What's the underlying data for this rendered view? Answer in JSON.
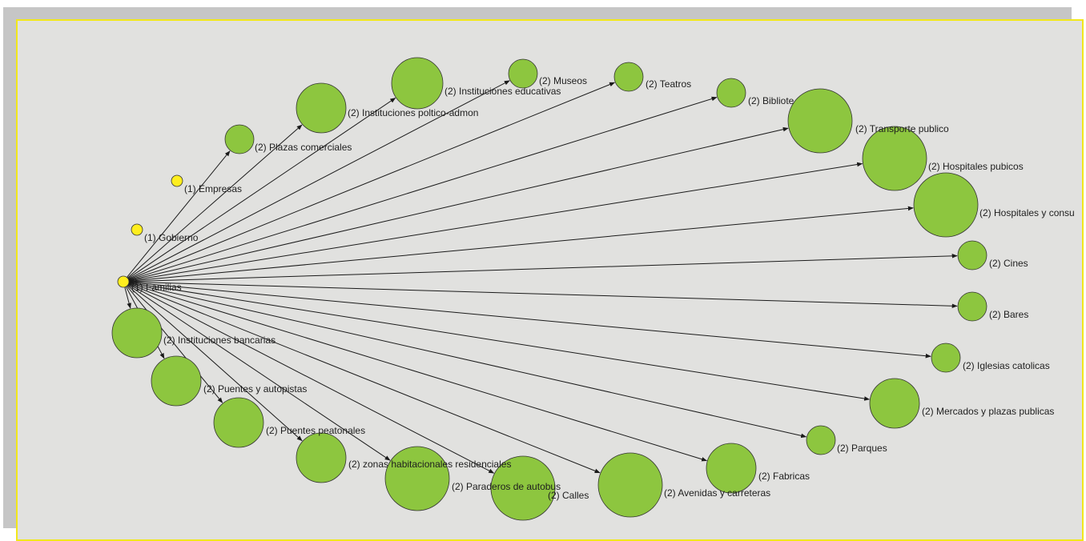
{
  "colors": {
    "background": "#e1e1df",
    "frame_border": "#f2e81a",
    "shadow": "#c6c6c6",
    "edge": "#1a1a1a",
    "node_type1": "#ffee1f",
    "node_type2": "#8dc63f",
    "node_stroke": "#333333"
  },
  "diagram": {
    "type": "directed-network",
    "source": "(1) Familias",
    "type1_nodes": [
      {
        "label": "(1) Empresas"
      },
      {
        "label": "(1) Gobierno"
      },
      {
        "label": "(1) Familias"
      }
    ],
    "type2_nodes": [
      {
        "label": "(2) Plazas comerciales"
      },
      {
        "label": "(2) Instituciones poltico-admon"
      },
      {
        "label": "(2) Instituciones educativas"
      },
      {
        "label": "(2) Museos"
      },
      {
        "label": "(2) Teatros"
      },
      {
        "label": "(2) Bibliote"
      },
      {
        "label": "(2) Transporte publico"
      },
      {
        "label": "(2) Hospitales pubicos"
      },
      {
        "label": "(2) Hospitales y consu"
      },
      {
        "label": "(2) Cines"
      },
      {
        "label": "(2) Bares"
      },
      {
        "label": "(2) Iglesias catolicas"
      },
      {
        "label": "(2) Mercados y plazas publicas"
      },
      {
        "label": "(2) Parques"
      },
      {
        "label": "(2) Fabricas"
      },
      {
        "label": "(2) Avenidas y carreteras"
      },
      {
        "label": "(2) Calles"
      },
      {
        "label": "(2) Paraderos de autobus"
      },
      {
        "label": "(2) zonas habitacionales residenciales"
      },
      {
        "label": "(2) Puentes peatonales"
      },
      {
        "label": "(2) Puentes y autopistas"
      },
      {
        "label": "(2) Instituciones bancarias"
      }
    ]
  }
}
